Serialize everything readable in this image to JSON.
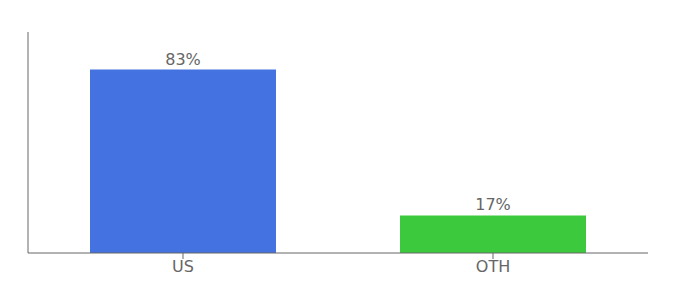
{
  "chart_data": {
    "type": "bar",
    "categories": [
      "US",
      "OTH"
    ],
    "values": [
      83,
      17
    ],
    "value_labels": [
      "83%",
      "17%"
    ],
    "colors": [
      "#4472e0",
      "#3dc93d"
    ],
    "ylim": [
      0,
      100
    ],
    "data_labels": true,
    "tick_labels": "x",
    "grid": false
  }
}
